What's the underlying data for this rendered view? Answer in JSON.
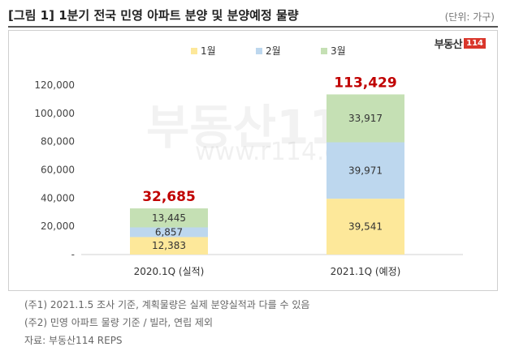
{
  "title": "[그림 1] 1분기 전국 민영 아파트 분양 및 분양예정 물량",
  "unit_label": "(단위: 가구)",
  "logo": {
    "text": "부동산",
    "box": "114"
  },
  "watermark": {
    "text": "부동산114",
    "url": "www.r114.com"
  },
  "chart_data": {
    "type": "bar",
    "stacked": true,
    "categories": [
      "2020.1Q (실적)",
      "2021.1Q (예정)"
    ],
    "series": [
      {
        "name": "1월",
        "values": [
          12383,
          39541
        ],
        "color": "#fde89a"
      },
      {
        "name": "2월",
        "values": [
          6857,
          39971
        ],
        "color": "#bdd7ee"
      },
      {
        "name": "3월",
        "values": [
          13445,
          33917
        ],
        "color": "#c5e0b4"
      }
    ],
    "totals": [
      32685,
      113429
    ],
    "total_labels": [
      "32,685",
      "113,429"
    ],
    "segment_labels": [
      [
        "12,383",
        "39,541"
      ],
      [
        "6,857",
        "39,971"
      ],
      [
        "13,445",
        "33,917"
      ]
    ],
    "ylim": [
      0,
      120000
    ],
    "yticks": [
      0,
      20000,
      40000,
      60000,
      80000,
      100000,
      120000
    ],
    "ytick_labels": [
      "-",
      "20,000",
      "40,000",
      "60,000",
      "80,000",
      "100,000",
      "120,000"
    ],
    "legend_position": "top",
    "grid": false,
    "total_color": "#c00000"
  },
  "footnotes": [
    "(주1) 2021.1.5 조사 기준, 계획물량은 실제 분양실적과 다를 수 있음",
    "(주2) 민영 아파트 물량 기준 / 빌라, 연립 제외",
    "자료: 부동산114 REPS"
  ]
}
